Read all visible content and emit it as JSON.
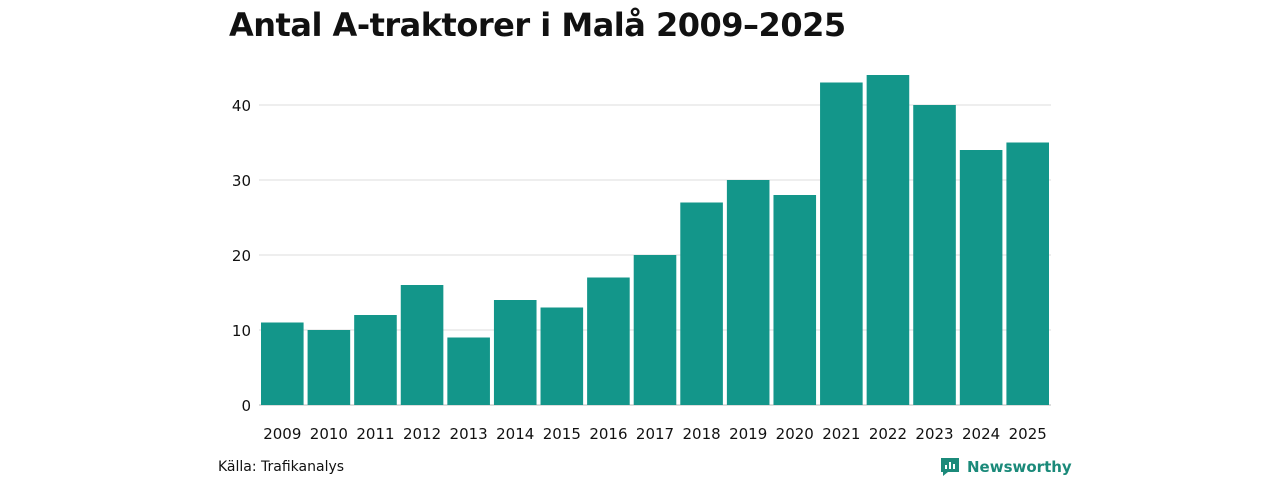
{
  "chart_data": {
    "type": "bar",
    "title": "Antal A-traktorer i Malå 2009–2025",
    "categories": [
      "2009",
      "2010",
      "2011",
      "2012",
      "2013",
      "2014",
      "2015",
      "2016",
      "2017",
      "2018",
      "2019",
      "2020",
      "2021",
      "2022",
      "2023",
      "2024",
      "2025"
    ],
    "values": [
      11,
      10,
      12,
      16,
      9,
      14,
      13,
      17,
      20,
      27,
      30,
      28,
      43,
      44,
      40,
      34,
      35
    ],
    "xlabel": "",
    "ylabel": "",
    "ylim": [
      0,
      46
    ],
    "yticks": [
      0,
      10,
      20,
      30,
      40
    ],
    "grid": true,
    "bar_color": "#13968a",
    "grid_color": "#dddddd"
  },
  "footer": {
    "source": "Källa: Trafikanalys",
    "brand": "Newsworthy",
    "brand_icon": "newsworthy-logo-icon",
    "brand_color": "#1b8a7a"
  }
}
